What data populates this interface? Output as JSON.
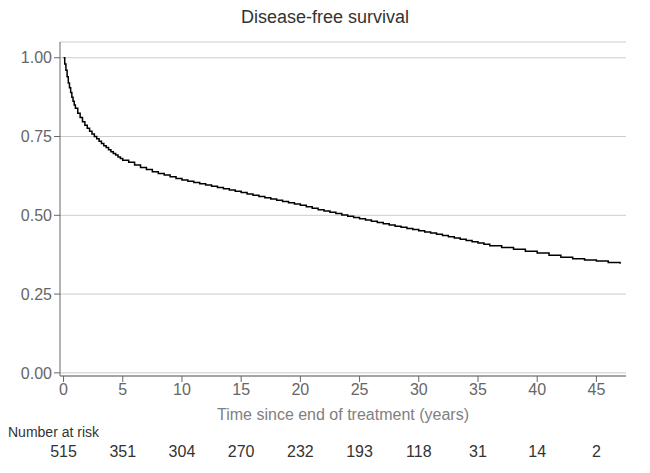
{
  "chart_data": {
    "type": "step",
    "title": "Disease-free survival",
    "xlabel": "Time since end of treatment (years)",
    "x": [
      0.0,
      0.1,
      0.2,
      0.3,
      0.4,
      0.5,
      0.6,
      0.7,
      0.8,
      0.9,
      1.0,
      1.2,
      1.4,
      1.6,
      1.8,
      2.0,
      2.2,
      2.4,
      2.6,
      2.8,
      3.0,
      3.2,
      3.4,
      3.6,
      3.8,
      4.0,
      4.2,
      4.4,
      4.6,
      4.8,
      5.0,
      5.5,
      6.0,
      6.5,
      7.0,
      7.5,
      8.0,
      8.5,
      9.0,
      9.5,
      10.0,
      10.5,
      11.0,
      11.5,
      12.0,
      12.5,
      13.0,
      13.5,
      14.0,
      14.5,
      15.0,
      15.5,
      16.0,
      16.5,
      17.0,
      17.5,
      18.0,
      18.5,
      19.0,
      19.5,
      20.0,
      20.5,
      21.0,
      21.5,
      22.0,
      22.5,
      23.0,
      23.5,
      24.0,
      24.5,
      25.0,
      25.5,
      26.0,
      26.5,
      27.0,
      27.5,
      28.0,
      28.5,
      29.0,
      29.5,
      30.0,
      30.5,
      31.0,
      31.5,
      32.0,
      32.5,
      33.0,
      33.5,
      34.0,
      34.5,
      35.0,
      35.5,
      36.0,
      37.0,
      38.0,
      39.0,
      40.0,
      41.0,
      42.0,
      43.0,
      44.0,
      45.0,
      46.0,
      47.0
    ],
    "values": [
      1.0,
      0.98,
      0.96,
      0.94,
      0.92,
      0.905,
      0.89,
      0.875,
      0.862,
      0.85,
      0.84,
      0.824,
      0.81,
      0.797,
      0.786,
      0.776,
      0.767,
      0.758,
      0.75,
      0.743,
      0.735,
      0.728,
      0.721,
      0.715,
      0.708,
      0.702,
      0.696,
      0.691,
      0.685,
      0.68,
      0.675,
      0.668,
      0.66,
      0.652,
      0.645,
      0.638,
      0.633,
      0.628,
      0.622,
      0.617,
      0.612,
      0.608,
      0.604,
      0.6,
      0.596,
      0.592,
      0.588,
      0.584,
      0.58,
      0.576,
      0.572,
      0.568,
      0.564,
      0.56,
      0.556,
      0.552,
      0.548,
      0.544,
      0.54,
      0.536,
      0.532,
      0.527,
      0.522,
      0.518,
      0.514,
      0.51,
      0.506,
      0.501,
      0.497,
      0.493,
      0.489,
      0.485,
      0.481,
      0.477,
      0.473,
      0.469,
      0.465,
      0.462,
      0.458,
      0.455,
      0.451,
      0.447,
      0.444,
      0.44,
      0.436,
      0.432,
      0.428,
      0.424,
      0.42,
      0.416,
      0.412,
      0.408,
      0.403,
      0.398,
      0.392,
      0.386,
      0.38,
      0.373,
      0.367,
      0.362,
      0.358,
      0.355,
      0.35,
      0.346
    ],
    "color": "#000000",
    "xlim": [
      -0.3,
      47.5
    ],
    "ylim": [
      -0.01,
      1.05
    ],
    "xticks": [
      0,
      5,
      10,
      15,
      20,
      25,
      30,
      35,
      40,
      45
    ],
    "yticks": [
      {
        "value": 0.0,
        "label": "0.00"
      },
      {
        "value": 0.25,
        "label": "0.25"
      },
      {
        "value": 0.5,
        "label": "0.50"
      },
      {
        "value": 0.75,
        "label": "0.75"
      },
      {
        "value": 1.0,
        "label": "1.00"
      }
    ],
    "grid": true,
    "number_at_risk": {
      "label": "Number at risk",
      "times": [
        0,
        5,
        10,
        15,
        20,
        25,
        30,
        35,
        40,
        45
      ],
      "values": [
        515,
        351,
        304,
        270,
        232,
        193,
        118,
        31,
        14,
        2
      ]
    }
  }
}
